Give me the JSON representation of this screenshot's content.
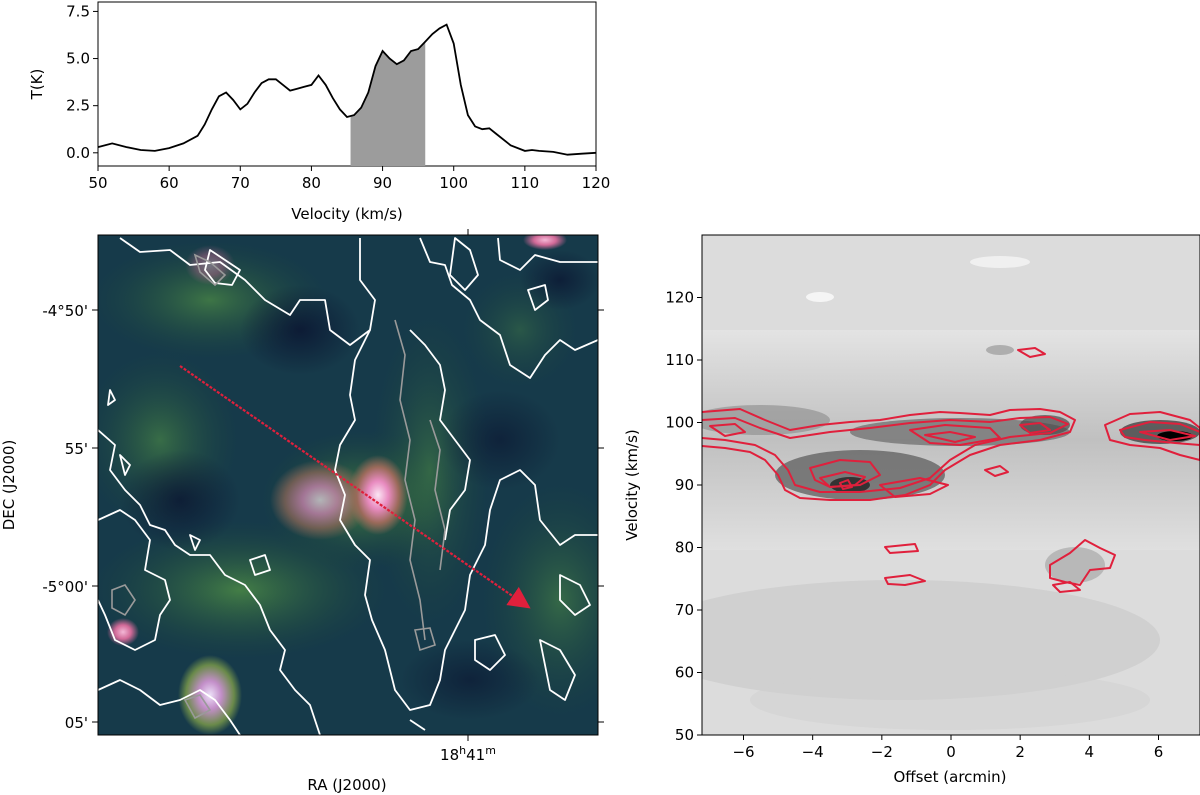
{
  "chart_data": [
    {
      "type": "area",
      "panel": "spectrum",
      "xlabel": "Velocity (km/s)",
      "ylabel": "T(K)",
      "xlim": [
        50,
        120
      ],
      "ylim": [
        -0.7,
        8.0
      ],
      "xticks": [
        50,
        60,
        70,
        80,
        90,
        100,
        110,
        120
      ],
      "xtick_labels": [
        "50",
        "60",
        "70",
        "80",
        "90",
        "100",
        "110",
        "120"
      ],
      "yticks": [
        0.0,
        2.5,
        5.0,
        7.5
      ],
      "ytick_labels": [
        "0.0",
        "2.5",
        "5.0",
        "7.5"
      ],
      "shaded_range": [
        85.5,
        96.0
      ],
      "grid": false,
      "series": [
        {
          "x": [
            50,
            52,
            54,
            56,
            58,
            60,
            62,
            64,
            65,
            66,
            67,
            68,
            69,
            70,
            71,
            72,
            73,
            74,
            75,
            76,
            77,
            78,
            79,
            80,
            81,
            82,
            83,
            84,
            85,
            86,
            87,
            88,
            89,
            90,
            91,
            92,
            93,
            94,
            95,
            96,
            97,
            98,
            99,
            100,
            101,
            102,
            103,
            104,
            105,
            106,
            108,
            110,
            111,
            112,
            114,
            116,
            118,
            120
          ],
          "y": [
            0.3,
            0.5,
            0.3,
            0.15,
            0.1,
            0.25,
            0.5,
            0.9,
            1.5,
            2.3,
            3.0,
            3.2,
            2.8,
            2.3,
            2.6,
            3.2,
            3.7,
            3.9,
            3.9,
            3.6,
            3.3,
            3.4,
            3.5,
            3.6,
            4.1,
            3.6,
            2.9,
            2.3,
            1.9,
            2.0,
            2.4,
            3.2,
            4.6,
            5.4,
            5.0,
            4.7,
            4.9,
            5.4,
            5.5,
            5.9,
            6.3,
            6.6,
            6.8,
            5.8,
            3.6,
            2.0,
            1.4,
            1.25,
            1.3,
            1.0,
            0.4,
            0.1,
            0.15,
            0.1,
            0.05,
            -0.1,
            -0.05,
            0.0
          ]
        }
      ]
    },
    {
      "type": "heatmap",
      "panel": "map",
      "xlabel": "RA (J2000)",
      "ylabel": "DEC (J2000)",
      "xtick_label": "18h41m",
      "ytick_labels": [
        "-4°50'",
        "55'",
        "-5°00'",
        "05'"
      ],
      "cut_arrow": {
        "label": "",
        "color": "#e0203c"
      },
      "contour_color": "#ffffff"
    },
    {
      "type": "heatmap",
      "panel": "position-velocity",
      "xlabel": "Offset (arcmin)",
      "ylabel": "Velocity (km/s)",
      "xlim": [
        -7.2,
        7.2
      ],
      "ylim": [
        50,
        130
      ],
      "xticks": [
        -6,
        -4,
        -2,
        0,
        2,
        4,
        6
      ],
      "xtick_labels": [
        "−6",
        "−4",
        "−2",
        "0",
        "2",
        "4",
        "6"
      ],
      "yticks": [
        50,
        60,
        70,
        80,
        90,
        100,
        110,
        120
      ],
      "ytick_labels": [
        "50",
        "60",
        "70",
        "80",
        "90",
        "100",
        "110",
        "120"
      ],
      "contour_color": "#e0203c"
    }
  ]
}
